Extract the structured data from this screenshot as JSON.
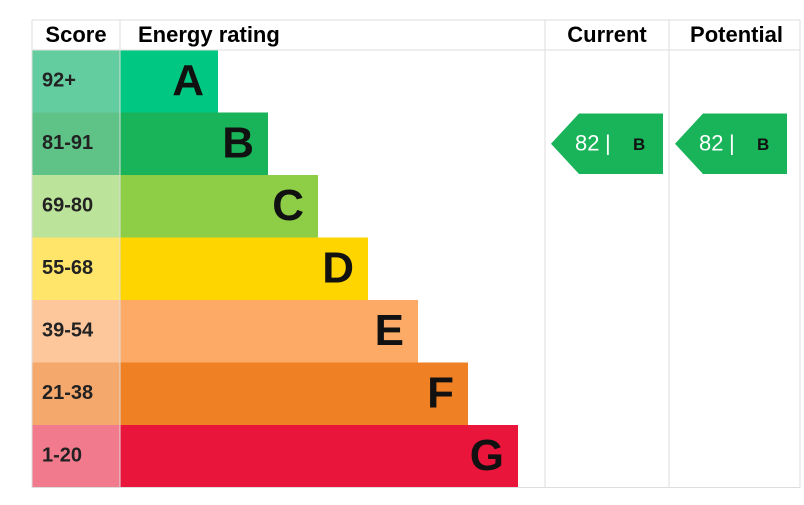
{
  "headers": [
    "Score",
    "Energy rating",
    "Current",
    "Potential"
  ],
  "bands": [
    {
      "score": "92+",
      "letter": "A",
      "color": "#00c781",
      "score_color": "#64cda0"
    },
    {
      "score": "81-91",
      "letter": "B",
      "color": "#19b459",
      "score_color": "#5fc287"
    },
    {
      "score": "69-80",
      "letter": "C",
      "color": "#8dce46",
      "score_color": "#bce39a"
    },
    {
      "score": "55-68",
      "letter": "D",
      "color": "#ffd500",
      "score_color": "#ffe66b"
    },
    {
      "score": "39-54",
      "letter": "E",
      "color": "#fcaa65",
      "score_color": "#fdc79b"
    },
    {
      "score": "21-38",
      "letter": "F",
      "color": "#ef8023",
      "score_color": "#f4a86c"
    },
    {
      "score": "1-20",
      "letter": "G",
      "color": "#e9153b",
      "score_color": "#f17a8c"
    }
  ],
  "current": {
    "value": 82,
    "separator": "|",
    "letter": "B"
  },
  "potential": {
    "value": 82,
    "separator": "|",
    "letter": "B"
  }
}
